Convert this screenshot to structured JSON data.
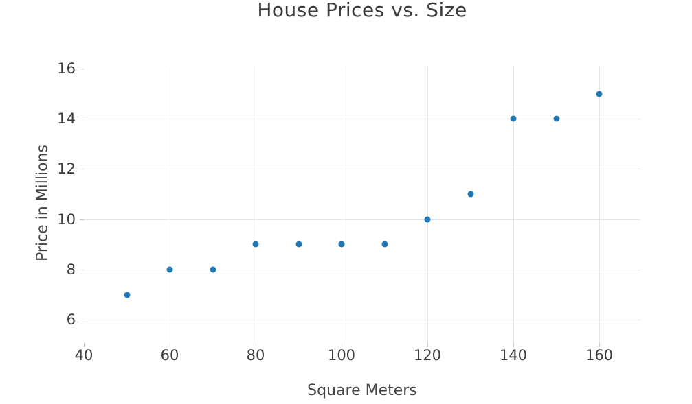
{
  "chart_data": {
    "type": "scatter",
    "title": "House Prices vs. Size",
    "xlabel": "Square Meters",
    "ylabel": "Price in Millions",
    "x": [
      50,
      60,
      70,
      80,
      90,
      100,
      110,
      120,
      130,
      140,
      150,
      160
    ],
    "y": [
      7,
      8,
      8,
      9,
      9,
      9,
      9,
      10,
      11,
      14,
      14,
      15
    ],
    "xticks": [
      40,
      60,
      80,
      100,
      120,
      140,
      160
    ],
    "yticks": [
      6,
      8,
      10,
      12,
      14,
      16
    ],
    "xlim": [
      40,
      169.6
    ],
    "ylim": [
      5.08,
      16.08
    ],
    "grid": true,
    "legend": null,
    "marker_color": "#1f77b4",
    "grid_color": "#e5e5e5",
    "tick_mark_color": "#c9c9c9",
    "text_color": "#3b3b3b",
    "background_color": "#ffffff"
  }
}
